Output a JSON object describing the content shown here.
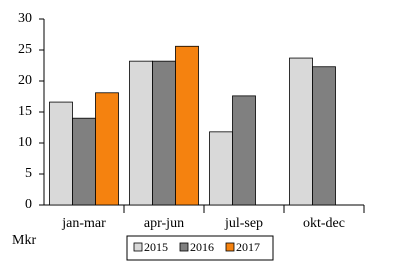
{
  "chart_data": {
    "type": "bar",
    "y_unit_label": "Mkr",
    "categories": [
      "jan-mar",
      "apr-jun",
      "jul-sep",
      "okt-dec"
    ],
    "series": [
      {
        "name": "2015",
        "color": "#d9d9d9",
        "values": [
          16.6,
          23.2,
          11.8,
          23.7
        ]
      },
      {
        "name": "2016",
        "color": "#808080",
        "values": [
          14.0,
          23.2,
          17.6,
          22.3
        ]
      },
      {
        "name": "2017",
        "color": "#f5820f",
        "values": [
          18.1,
          25.6,
          null,
          null
        ]
      }
    ],
    "ylim": [
      0,
      30
    ],
    "yticks": [
      0,
      5,
      10,
      15,
      20,
      25,
      30
    ],
    "grid": false
  }
}
